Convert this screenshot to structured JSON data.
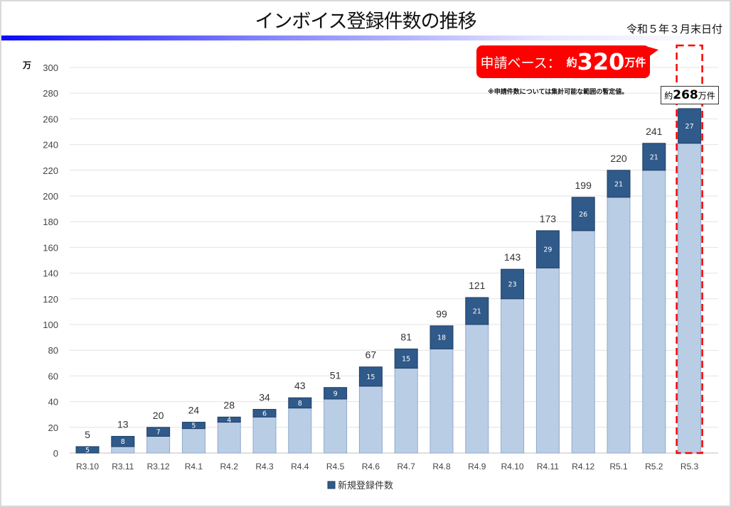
{
  "header": {
    "title": "インボイス登録件数の推移",
    "date": "令和５年３月末日付"
  },
  "callout": {
    "label": "申請ベース：",
    "prefix": "約",
    "value": "320",
    "unit": "万件",
    "note": "※申請件数については集計可能な範囲の暫定値。"
  },
  "last_bar_label": {
    "prefix": "約",
    "value": "268",
    "unit": "万件"
  },
  "chart_data": {
    "type": "bar",
    "stacked": true,
    "title": "インボイス登録件数の推移",
    "ylabel": "万",
    "ylim": [
      0,
      300
    ],
    "yticks": [
      0,
      20,
      40,
      60,
      80,
      100,
      120,
      140,
      160,
      180,
      200,
      220,
      240,
      260,
      280,
      300
    ],
    "grid": true,
    "legend": "bottom",
    "categories": [
      "R3.10",
      "R3.11",
      "R3.12",
      "R4.1",
      "R4.2",
      "R4.3",
      "R4.4",
      "R4.5",
      "R4.6",
      "R4.7",
      "R4.8",
      "R4.9",
      "R4.10",
      "R4.11",
      "R4.12",
      "R5.1",
      "R5.2",
      "R5.3"
    ],
    "totals": [
      5,
      13,
      20,
      24,
      28,
      34,
      43,
      51,
      67,
      81,
      99,
      121,
      143,
      173,
      199,
      220,
      241,
      268
    ],
    "series": [
      {
        "values": [
          0,
          5,
          13,
          19,
          24,
          28,
          35,
          42,
          52,
          66,
          81,
          100,
          120,
          144,
          173,
          199,
          220,
          241
        ],
        "color": "#b9cde5"
      },
      {
        "name": "新規登録件数",
        "values": [
          5,
          8,
          7,
          5,
          4,
          6,
          8,
          9,
          15,
          15,
          18,
          21,
          23,
          29,
          26,
          21,
          21,
          27
        ],
        "color": "#2f5a8a"
      }
    ]
  },
  "colors": {
    "accent": "#ff0000",
    "new": "#2f5a8a",
    "cumulative": "#b9cde5",
    "edge": "#8fa9cc"
  }
}
